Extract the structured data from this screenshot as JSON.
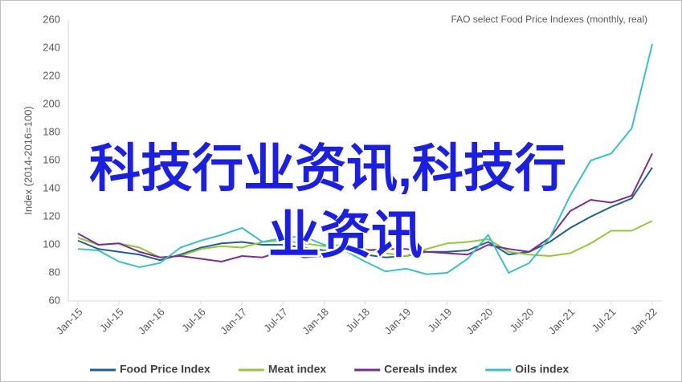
{
  "chart_data": {
    "type": "line",
    "subtitle": "FAO select Food Price Indexes (monthly, real)",
    "y_label": "Index (2014-2016=100)",
    "annotations": [
      "科技行业资讯,科技行",
      "业资讯"
    ],
    "categories": [
      "Jan-15",
      null,
      "Jul-15",
      null,
      "Jan-16",
      null,
      "Jul-16",
      null,
      "Jan-17",
      null,
      "Jul-17",
      null,
      "Jan-18",
      null,
      "Jul-18",
      null,
      "Jan-19",
      null,
      "Jul-19",
      null,
      "Jan-20",
      null,
      "Jul-20",
      null,
      "Jan-21",
      null,
      "Jul-21",
      null,
      "Jan-22"
    ],
    "series": [
      {
        "name": "Food Price Index",
        "color": "#1f5f8b",
        "values": [
          103,
          97,
          95,
          93,
          89,
          93,
          98,
          101,
          102,
          100,
          100,
          98,
          96,
          97,
          93,
          91,
          92,
          95,
          95,
          96,
          102,
          93,
          95,
          102,
          112,
          120,
          127,
          133,
          155
        ]
      },
      {
        "name": "Meat index",
        "color": "#92c83e",
        "values": [
          105,
          100,
          101,
          98,
          91,
          92,
          97,
          99,
          98,
          102,
          103,
          101,
          99,
          100,
          97,
          94,
          92,
          97,
          101,
          102,
          104,
          95,
          93,
          92,
          94,
          101,
          110,
          110,
          117
        ]
      },
      {
        "name": "Cereals index",
        "color": "#7b2d8e",
        "values": [
          108,
          100,
          101,
          95,
          91,
          92,
          90,
          88,
          92,
          91,
          96,
          91,
          92,
          101,
          96,
          97,
          97,
          95,
          94,
          93,
          100,
          97,
          95,
          105,
          124,
          132,
          130,
          135,
          165
        ]
      },
      {
        "name": "Oils index",
        "color": "#3cc0c8",
        "values": [
          97,
          96,
          88,
          84,
          87,
          98,
          103,
          107,
          112,
          102,
          105,
          106,
          100,
          96,
          88,
          81,
          83,
          79,
          80,
          90,
          107,
          80,
          87,
          105,
          135,
          160,
          165,
          183,
          243
        ]
      }
    ],
    "ylim": [
      60,
      260
    ],
    "yticks": [
      60,
      80,
      100,
      120,
      140,
      160,
      180,
      200,
      220,
      240,
      260
    ],
    "grid": false
  }
}
